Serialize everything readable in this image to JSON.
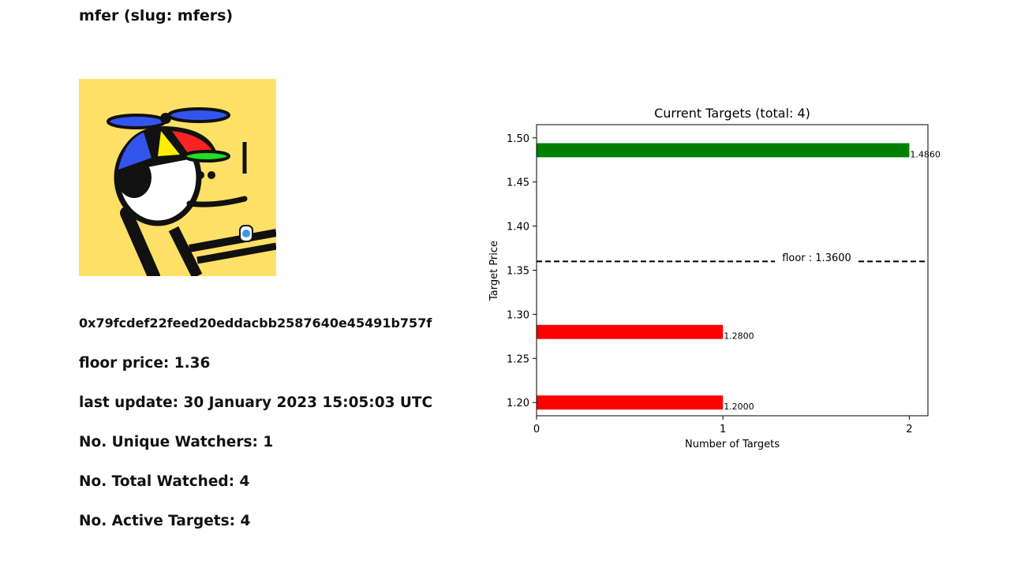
{
  "header": {
    "title": "mfer (slug: mfers)"
  },
  "image": {
    "name": "mfer avatar"
  },
  "info": {
    "address": "0x79fcdef22feed20eddacbb2587640e45491b757f",
    "floor_price": "floor price: 1.36",
    "last_update": "last update: 30 January 2023 15:05:03 UTC",
    "unique_watchers": "No. Unique Watchers: 1",
    "total_watched": "No. Total Watched: 4",
    "active_targets": "No. Active Targets: 4"
  },
  "colors": {
    "above_floor": "#008000",
    "below_floor": "#ff0000",
    "floor_line": "#000000"
  },
  "chart_data": {
    "type": "bar",
    "orientation": "horizontal",
    "title": "Current Targets (total: 4)",
    "xlabel": "Number of Targets",
    "ylabel": "Target Price",
    "xlim": [
      0,
      2.1
    ],
    "ylim": [
      1.185,
      1.515
    ],
    "xticks": [
      "0",
      "1",
      "2"
    ],
    "yticks": [
      "1.20",
      "1.25",
      "1.30",
      "1.35",
      "1.40",
      "1.45",
      "1.50"
    ],
    "bars": [
      {
        "price": 1.486,
        "count": 2,
        "label": "1.4860",
        "color": "#008000"
      },
      {
        "price": 1.28,
        "count": 1,
        "label": "1.2800",
        "color": "#ff0000"
      },
      {
        "price": 1.2,
        "count": 1,
        "label": "1.2000",
        "color": "#ff0000"
      }
    ],
    "floor": {
      "value": 1.36,
      "label": "floor : 1.3600"
    },
    "grid": false
  }
}
